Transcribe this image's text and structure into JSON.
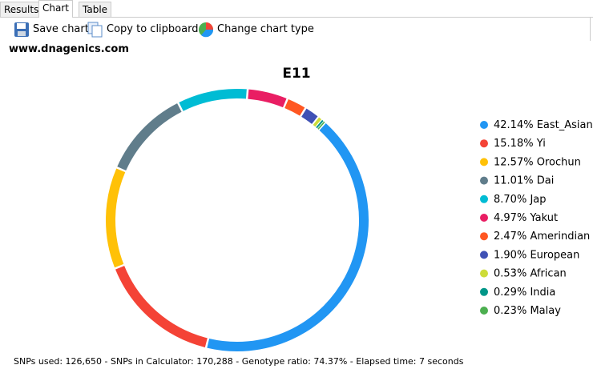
{
  "tabs": [
    "Results",
    "Chart",
    "Table"
  ],
  "toolbar": [
    "Save chart",
    "Copy to clipboard",
    "Change chart type"
  ],
  "site": "www.dnagenics.com",
  "status": "SNPs used: 126,650 - SNPs in Calculator: 170,288 - Genotype ratio: 74.37% - Elapsed time: 7 seconds",
  "chart_data": {
    "type": "donut",
    "title": "E11",
    "categories": [
      "East_Asian",
      "Yi",
      "Orochun",
      "Dai",
      "Jap",
      "Yakut",
      "Amerindian",
      "European",
      "African",
      "India",
      "Malay"
    ],
    "values": [
      42.14,
      15.18,
      12.57,
      11.01,
      8.7,
      4.97,
      2.47,
      1.9,
      0.53,
      0.29,
      0.23
    ],
    "value_labels": [
      "42.14%",
      "15.18%",
      "12.57%",
      "11.01%",
      "8.70%",
      "4.97%",
      "2.47%",
      "1.90%",
      "0.53%",
      "0.29%",
      "0.23%"
    ],
    "colors": [
      "#2196f3",
      "#f44336",
      "#ffc107",
      "#607d8b",
      "#00bcd4",
      "#e91e63",
      "#ff5722",
      "#3f51b5",
      "#cddc39",
      "#009688",
      "#4caf50"
    ],
    "legend": "right"
  }
}
